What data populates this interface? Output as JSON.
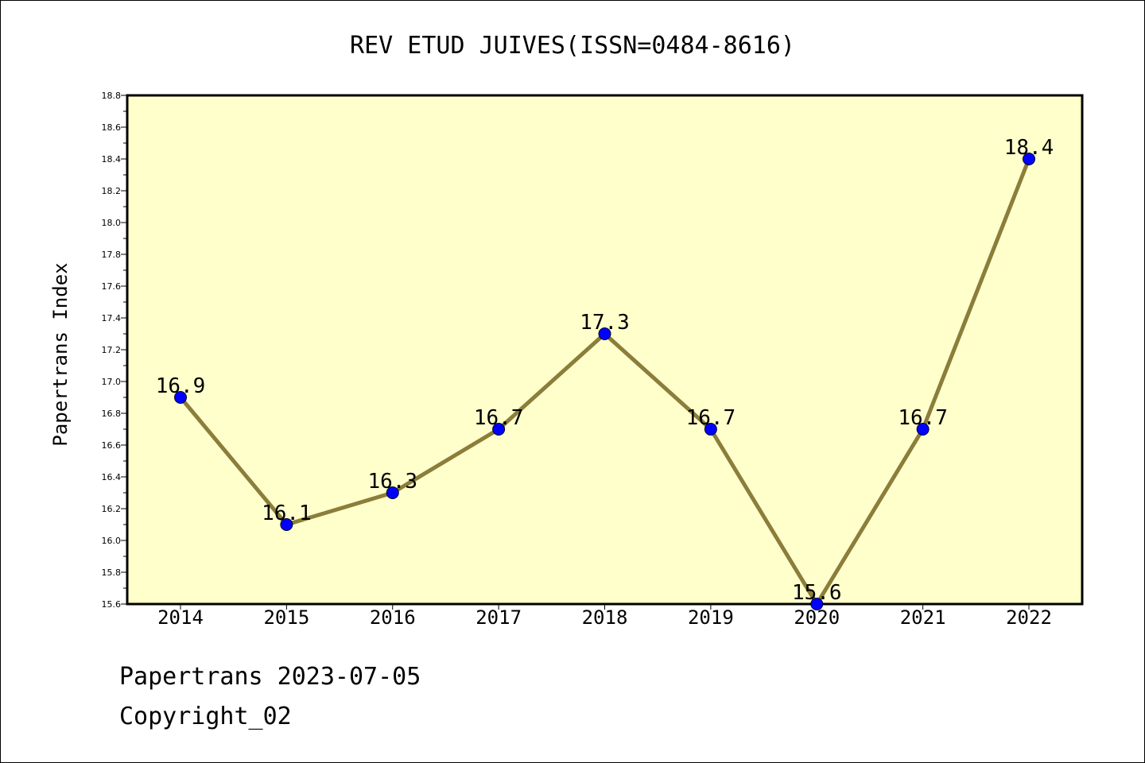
{
  "footer": {
    "line1": "Papertrans 2023-07-05",
    "line2": "Copyright_02"
  },
  "colors": {
    "plot_background": "#ffffcc",
    "line": "#8b7d3a",
    "marker": "#0000ff"
  },
  "chart_data": {
    "type": "line",
    "title": "REV ETUD JUIVES(ISSN=0484-8616)",
    "xlabel": "",
    "ylabel": "Papertrans Index",
    "categories": [
      "2014",
      "2015",
      "2016",
      "2017",
      "2018",
      "2019",
      "2020",
      "2021",
      "2022"
    ],
    "series": [
      {
        "values": [
          16.9,
          16.1,
          16.3,
          16.7,
          17.3,
          16.7,
          15.6,
          16.7,
          18.4
        ],
        "labels": [
          "16.9",
          "16.1",
          "16.3",
          "16.7",
          "17.3",
          "16.7",
          "15.6",
          "16.7",
          "18.4"
        ]
      }
    ],
    "ylim": [
      15.6,
      18.8
    ],
    "yticks": [
      "15.6",
      "15.8",
      "16.0",
      "16.2",
      "16.4",
      "16.6",
      "16.8",
      "17.0",
      "17.2",
      "17.4",
      "17.6",
      "17.8",
      "18.0",
      "18.2",
      "18.4",
      "18.6",
      "18.8"
    ],
    "grid": false,
    "legend": "none"
  }
}
